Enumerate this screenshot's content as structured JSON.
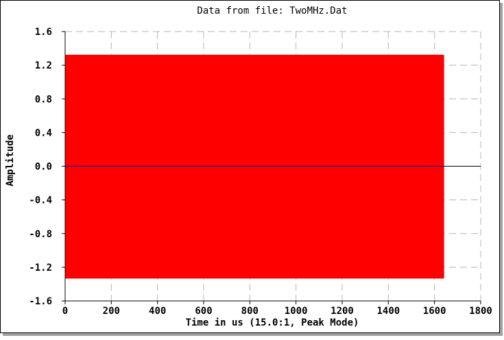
{
  "chart_data": {
    "type": "line",
    "title": "Data from file: TwoMHz.Dat",
    "xlabel": "Time in us (15.0:1, Peak Mode)",
    "ylabel": "Amplitude",
    "xlim": [
      0,
      1800
    ],
    "ylim": [
      -1.6,
      1.6
    ],
    "x_ticks": [
      0,
      200,
      400,
      600,
      800,
      1000,
      1200,
      1400,
      1600,
      1800
    ],
    "y_ticks": [
      1.6,
      1.2,
      0.8,
      0.4,
      0.0,
      -0.4,
      -0.8,
      -1.2,
      -1.6
    ],
    "x_tick_labels": [
      "0",
      "200",
      "400",
      "600",
      "800",
      "1000",
      "1200",
      "1400",
      "1600",
      "1800"
    ],
    "y_tick_labels": [
      "1.6",
      "1.2",
      "0.8",
      "0.4",
      "0.0",
      "-0.4",
      "-0.8",
      "-1.2",
      "-1.6"
    ],
    "grid": true,
    "grid_style": "dashed",
    "series": [
      {
        "color": "#ff0000",
        "pattern": "peak-envelope square wave",
        "x_range": [
          0,
          1640
        ],
        "peak_high": 1.32,
        "peak_low": -1.33,
        "cycle_period_us": 4.2
      },
      {
        "color": "#0000aa",
        "pattern": "baseline",
        "x_range": [
          0,
          1640
        ],
        "value": 0.0
      }
    ],
    "zero_line_color": "#000000",
    "colors": {
      "frame": "#000000",
      "grid": "#b4b4b4",
      "background": "#ffffff",
      "shadow": "#a0a0a0"
    }
  }
}
